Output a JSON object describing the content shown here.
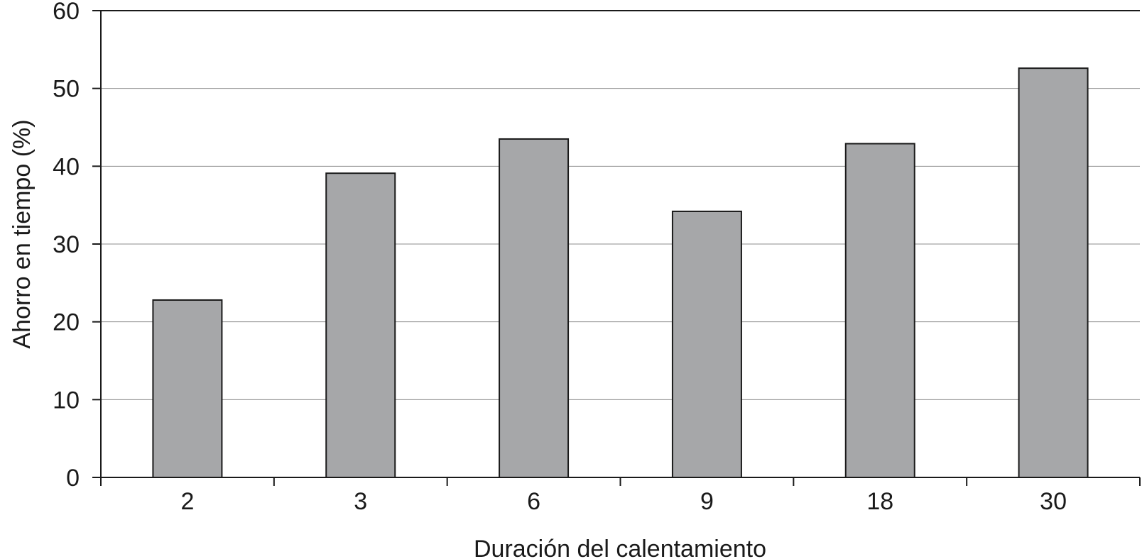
{
  "chart_data": {
    "type": "bar",
    "title": "",
    "xlabel": "Duración del calentamiento",
    "ylabel": "Ahorro en tiempo (%)",
    "categories": [
      "2",
      "3",
      "6",
      "9",
      "18",
      "30"
    ],
    "series": [
      {
        "values": [
          22.8,
          39.1,
          43.5,
          34.2,
          42.9,
          52.6
        ]
      }
    ],
    "ylim": [
      0,
      60
    ],
    "yticks": [
      "0",
      "10",
      "20",
      "30",
      "40",
      "50",
      "60"
    ],
    "grid": "horizontal",
    "legend": "none",
    "colors": {
      "bar_fill": "#a6a7a9",
      "bar_stroke": "#1a1a1a",
      "gridline": "#8c8c8c",
      "axis": "#1a1a1a"
    }
  }
}
